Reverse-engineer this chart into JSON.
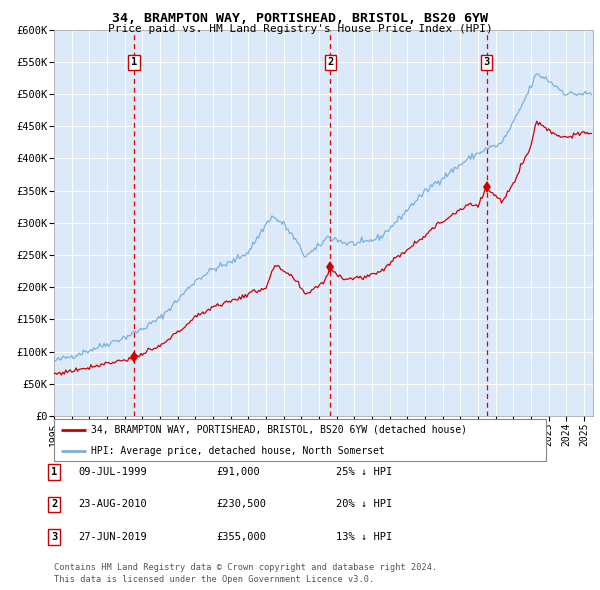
{
  "title1": "34, BRAMPTON WAY, PORTISHEAD, BRISTOL, BS20 6YW",
  "title2": "Price paid vs. HM Land Registry's House Price Index (HPI)",
  "legend_line1": "34, BRAMPTON WAY, PORTISHEAD, BRISTOL, BS20 6YW (detached house)",
  "legend_line2": "HPI: Average price, detached house, North Somerset",
  "table": [
    {
      "num": "1",
      "date": "09-JUL-1999",
      "price": "£91,000",
      "pct": "25% ↓ HPI"
    },
    {
      "num": "2",
      "date": "23-AUG-2010",
      "price": "£230,500",
      "pct": "20% ↓ HPI"
    },
    {
      "num": "3",
      "date": "27-JUN-2019",
      "price": "£355,000",
      "pct": "13% ↓ HPI"
    }
  ],
  "footnote1": "Contains HM Land Registry data © Crown copyright and database right 2024.",
  "footnote2": "This data is licensed under the Open Government Licence v3.0.",
  "sale_dates": [
    1999.52,
    2010.64,
    2019.49
  ],
  "sale_prices": [
    91000,
    230500,
    355000
  ],
  "hpi_color": "#7ab0db",
  "price_color": "#cc0000",
  "plot_bg": "#dce9f8",
  "grid_color": "#ffffff",
  "dashed_color": "#dd0000",
  "ylim": [
    0,
    600000
  ],
  "xlim_start": 1995.0,
  "xlim_end": 2025.5,
  "yticks": [
    0,
    50000,
    100000,
    150000,
    200000,
    250000,
    300000,
    350000,
    400000,
    450000,
    500000,
    550000,
    600000
  ],
  "xtick_years": [
    1995,
    1996,
    1997,
    1998,
    1999,
    2000,
    2001,
    2002,
    2003,
    2004,
    2005,
    2006,
    2007,
    2008,
    2009,
    2010,
    2011,
    2012,
    2013,
    2014,
    2015,
    2016,
    2017,
    2018,
    2019,
    2020,
    2021,
    2022,
    2023,
    2024,
    2025
  ]
}
